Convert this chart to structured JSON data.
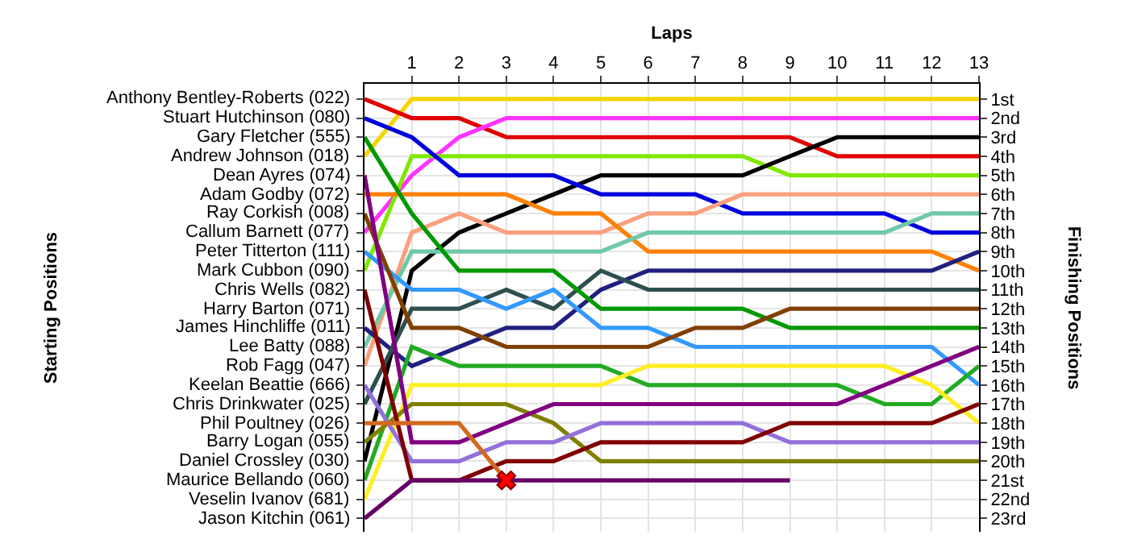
{
  "chart_data": {
    "type": "line",
    "xlabel": "Laps",
    "ylabel": "Finishing Positions",
    "x": [
      0,
      1,
      2,
      3,
      4,
      5,
      6,
      7,
      8,
      9,
      10,
      11,
      12,
      13
    ],
    "xlim": [
      0,
      13
    ],
    "xticks": [
      1,
      2,
      3,
      4,
      5,
      6,
      7,
      8,
      9,
      10,
      11,
      12,
      13
    ],
    "ylim": [
      23.7,
      0.2
    ],
    "yticks": [
      {
        "value": 1,
        "label": "1st"
      },
      {
        "value": 2,
        "label": "2nd"
      },
      {
        "value": 3,
        "label": "3rd"
      },
      {
        "value": 4,
        "label": "4th"
      },
      {
        "value": 5,
        "label": "5th"
      },
      {
        "value": 6,
        "label": "6th"
      },
      {
        "value": 7,
        "label": "7th"
      },
      {
        "value": 8,
        "label": "8th"
      },
      {
        "value": 9,
        "label": "9th"
      },
      {
        "value": 10,
        "label": "10th"
      },
      {
        "value": 11,
        "label": "11th"
      },
      {
        "value": 12,
        "label": "12th"
      },
      {
        "value": 13,
        "label": "13th"
      },
      {
        "value": 14,
        "label": "14th"
      },
      {
        "value": 15,
        "label": "15th"
      },
      {
        "value": 16,
        "label": "16th"
      },
      {
        "value": 17,
        "label": "17th"
      },
      {
        "value": 18,
        "label": "18th"
      },
      {
        "value": 19,
        "label": "19th"
      },
      {
        "value": 20,
        "label": "20th"
      },
      {
        "value": 21,
        "label": "21st"
      },
      {
        "value": 22,
        "label": "22nd"
      },
      {
        "value": 23,
        "label": "23rd"
      }
    ],
    "annotations": [
      "Starting Positions",
      "Anthony Bentley-Roberts (022)",
      "Stuart Hutchinson (080)",
      "Gary Fletcher (555)",
      "Andrew Johnson (018)",
      "Dean Ayres (074)",
      "Adam Godby (072)",
      "Ray Corkish (008)",
      "Callum Barnett (077)",
      "Peter Titterton (111)",
      "Mark Cubbon (090)",
      "Chris Wells (082)",
      "Harry Barton (071)",
      "James Hinchliffe (011)",
      "Lee Batty (088)",
      "Rob Fagg (047)",
      "Keelan Beattie (666)",
      "Chris Drinkwater (025)",
      "Phil Poultney (026)",
      "Barry Logan (055)",
      "Daniel Crossley (030)",
      "Maurice Bellando (060)",
      "Veselin Ivanov (681)",
      "Jason Kitchin (061)"
    ],
    "grid": true,
    "series": [
      {
        "color": "#f2d600",
        "values": [
          4,
          1,
          1,
          1,
          1,
          1,
          1,
          1,
          1,
          1,
          1,
          1,
          1,
          1
        ]
      },
      {
        "color": "#e00000",
        "values": [
          1,
          2,
          2,
          3,
          3,
          3,
          3,
          3,
          3,
          3,
          4,
          4,
          4,
          4
        ]
      },
      {
        "color": "#ff33ff",
        "values": [
          8,
          5,
          3,
          2,
          2,
          2,
          2,
          2,
          2,
          2,
          2,
          2,
          2,
          2
        ]
      },
      {
        "color": "#80e800",
        "values": [
          10,
          4,
          4,
          4,
          4,
          4,
          4,
          4,
          4,
          5,
          5,
          5,
          5,
          5
        ]
      },
      {
        "color": "#000000",
        "values": [
          20,
          10,
          8,
          7,
          6,
          5,
          5,
          5,
          5,
          4,
          3,
          3,
          3,
          3
        ]
      },
      {
        "color": "#0000dd",
        "values": [
          2,
          3,
          5,
          5,
          5,
          6,
          6,
          6,
          7,
          7,
          7,
          7,
          8,
          8
        ]
      },
      {
        "color": "#f9a07e",
        "values": [
          15,
          8,
          7,
          8,
          8,
          8,
          7,
          7,
          6,
          6,
          6,
          6,
          6,
          6
        ]
      },
      {
        "color": "#ff8000",
        "values": [
          6,
          6,
          6,
          6,
          7,
          7,
          9,
          9,
          9,
          9,
          9,
          9,
          9,
          10
        ]
      },
      {
        "color": "#70c8a8",
        "values": [
          14,
          9,
          9,
          9,
          9,
          9,
          8,
          8,
          8,
          8,
          8,
          8,
          7,
          7
        ]
      },
      {
        "color": "#202080",
        "values": [
          13,
          15,
          14,
          13,
          13,
          11,
          10,
          10,
          10,
          10,
          10,
          10,
          10,
          9
        ]
      },
      {
        "color": "#2f4f4f",
        "values": [
          17,
          12,
          12,
          11,
          12,
          10,
          11,
          11,
          11,
          11,
          11,
          11,
          11,
          11
        ]
      },
      {
        "color": "#3399ff",
        "values": [
          9,
          11,
          11,
          12,
          11,
          13,
          13,
          14,
          14,
          14,
          14,
          14,
          14,
          16
        ]
      },
      {
        "color": "#009900",
        "values": [
          3,
          7,
          10,
          10,
          10,
          12,
          12,
          12,
          12,
          13,
          13,
          13,
          13,
          13
        ]
      },
      {
        "color": "#804000",
        "values": [
          7,
          13,
          13,
          14,
          14,
          14,
          14,
          13,
          13,
          12,
          12,
          12,
          12,
          12
        ]
      },
      {
        "color": "#22aa22",
        "values": [
          21,
          14,
          15,
          15,
          15,
          15,
          16,
          16,
          16,
          16,
          16,
          17,
          17,
          15
        ]
      },
      {
        "color": "#ffee22",
        "values": [
          22,
          16,
          16,
          16,
          16,
          16,
          15,
          15,
          15,
          15,
          15,
          15,
          16,
          18
        ]
      },
      {
        "color": "#808000",
        "values": [
          19,
          17,
          17,
          17,
          18,
          20,
          20,
          20,
          20,
          20,
          20,
          20,
          20,
          20
        ]
      },
      {
        "color": "#800080",
        "values": [
          5,
          19,
          19,
          18,
          17,
          17,
          17,
          17,
          17,
          17,
          17,
          16,
          15,
          14
        ]
      },
      {
        "color": "#9370db",
        "values": [
          16,
          20,
          20,
          19,
          19,
          18,
          18,
          18,
          18,
          19,
          19,
          19,
          19,
          19
        ]
      },
      {
        "color": "#800000",
        "values": [
          11,
          21,
          21,
          20,
          20,
          19,
          19,
          19,
          19,
          18,
          18,
          18,
          18,
          17
        ]
      },
      {
        "color": "#660066",
        "values": [
          23,
          21,
          21,
          21,
          21,
          21,
          21,
          21,
          21,
          21,
          null,
          null,
          null,
          null
        ]
      },
      {
        "color": "#d2691e",
        "values": [
          18,
          18,
          18,
          21,
          null,
          null,
          null,
          null,
          null,
          null,
          null,
          null,
          null,
          null
        ]
      },
      {
        "type": "scatter",
        "marker": "cross",
        "color": "#ff0000",
        "x": [
          3
        ],
        "values": [
          21
        ]
      }
    ]
  }
}
